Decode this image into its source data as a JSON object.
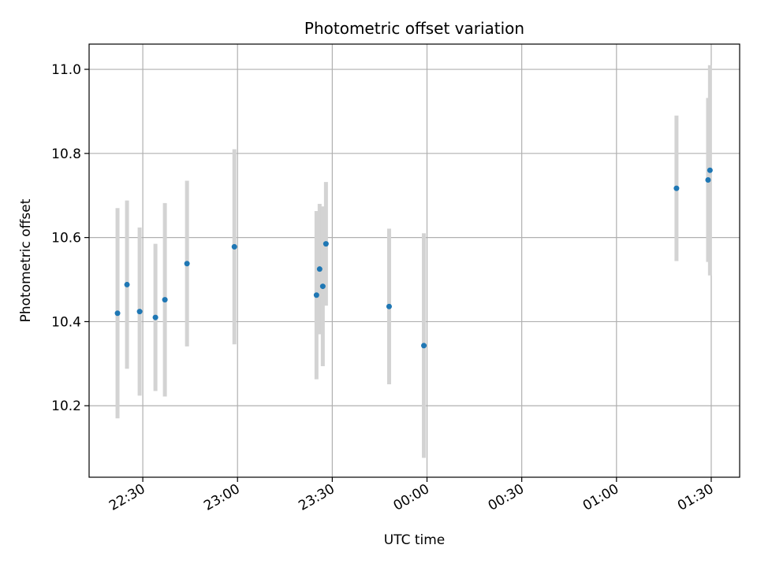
{
  "chart_data": {
    "type": "scatter",
    "title": "Photometric offset variation",
    "xlabel": "UTC time",
    "ylabel": "Photometric offset",
    "x_axis_kind": "time",
    "xlim": [
      "22:13",
      "01:39"
    ],
    "ylim": [
      10.03,
      11.06
    ],
    "x_ticks": [
      {
        "time": "22:30",
        "label": "22:30"
      },
      {
        "time": "23:00",
        "label": "23:00"
      },
      {
        "time": "23:30",
        "label": "23:30"
      },
      {
        "time": "00:00",
        "label": "00:00"
      },
      {
        "time": "00:30",
        "label": "00:30"
      },
      {
        "time": "01:00",
        "label": "01:00"
      },
      {
        "time": "01:30",
        "label": "01:30"
      }
    ],
    "y_ticks": [
      {
        "value": 10.2,
        "label": "10.2"
      },
      {
        "value": 10.4,
        "label": "10.4"
      },
      {
        "value": 10.6,
        "label": "10.6"
      },
      {
        "value": 10.8,
        "label": "10.8"
      },
      {
        "value": 11.0,
        "label": "11.0"
      }
    ],
    "grid": true,
    "colors": {
      "point": "#1f77b4",
      "errorbar": "#d3d3d3",
      "grid": "#b0b0b0"
    },
    "points": [
      {
        "time": "22:22",
        "y": 10.42,
        "err": 0.25
      },
      {
        "time": "22:25",
        "y": 10.488,
        "err": 0.2
      },
      {
        "time": "22:29",
        "y": 10.424,
        "err": 0.2
      },
      {
        "time": "22:34",
        "y": 10.41,
        "err": 0.175
      },
      {
        "time": "22:37",
        "y": 10.452,
        "err": 0.23
      },
      {
        "time": "22:44",
        "y": 10.538,
        "err": 0.197
      },
      {
        "time": "22:59",
        "y": 10.578,
        "err": 0.232
      },
      {
        "time": "23:25",
        "y": 10.463,
        "err": 0.2
      },
      {
        "time": "23:26",
        "y": 10.525,
        "err": 0.155
      },
      {
        "time": "23:27",
        "y": 10.484,
        "err": 0.19
      },
      {
        "time": "23:28",
        "y": 10.585,
        "err": 0.147
      },
      {
        "time": "23:48",
        "y": 10.436,
        "err": 0.185
      },
      {
        "time": "23:59",
        "y": 10.343,
        "err": 0.267
      },
      {
        "time": "01:19",
        "y": 10.717,
        "err": 0.173
      },
      {
        "time": "01:29",
        "y": 10.737,
        "err": 0.195
      },
      {
        "time": "01:29.6",
        "y": 10.76,
        "err": 0.25
      }
    ]
  }
}
